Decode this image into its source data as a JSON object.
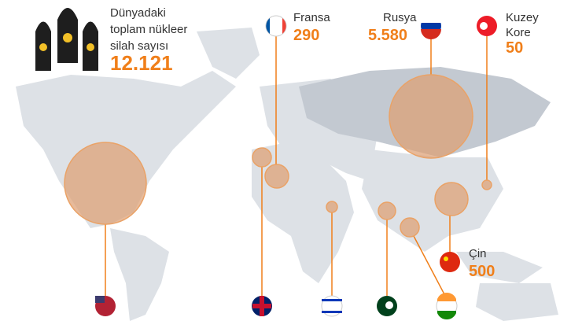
{
  "header": {
    "lines": [
      "Dünyadaki",
      "toplam nükleer",
      "silah sayısı"
    ],
    "total": "12.121"
  },
  "callouts": [
    {
      "name": [
        "Fransa"
      ],
      "value": "290"
    },
    {
      "name": [
        "Rusya"
      ],
      "value": "5.580"
    },
    {
      "name": [
        "Kuzey",
        "Kore"
      ],
      "value": "50"
    },
    {
      "name": [
        "Çin"
      ],
      "value": "500"
    }
  ]
}
